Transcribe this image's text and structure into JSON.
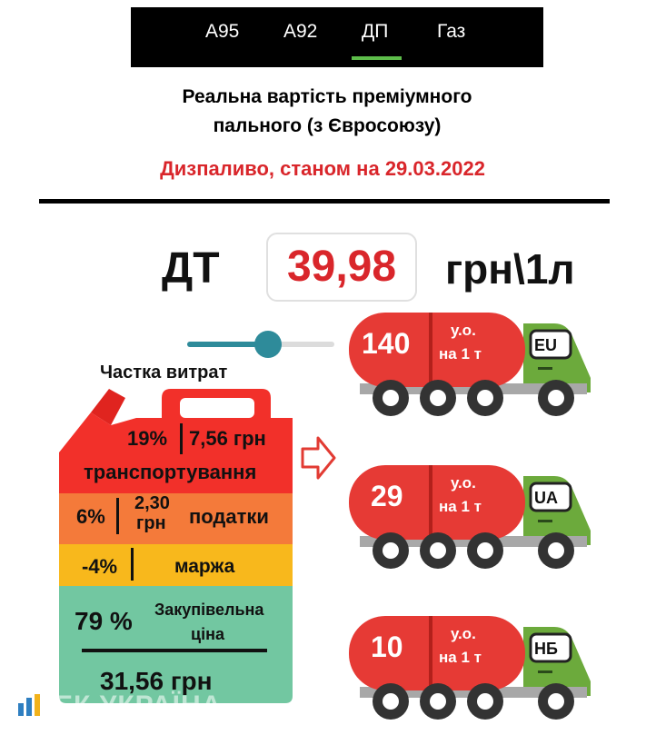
{
  "tabs": [
    {
      "label": "А95",
      "active": false
    },
    {
      "label": "А92",
      "active": false
    },
    {
      "label": "ДП",
      "active": true
    },
    {
      "label": "Газ",
      "active": false
    }
  ],
  "title_line1": "Реальна вартість преміумного",
  "title_line2": "пального (з Євросоюзу)",
  "subtitle": "Дизпаливо, станом на 29.03.2022",
  "price": {
    "fuel": "ДТ",
    "value": "39,98",
    "unit": "грн\\1л"
  },
  "slider": {
    "level": 0.55
  },
  "cost_share": {
    "title": "Частка витрат",
    "transport": {
      "percent": "19%",
      "amount": "7,56 грн",
      "label": "транспортування"
    },
    "taxes": {
      "percent": "6%",
      "amount_line1": "2,30",
      "amount_line2": "грн",
      "label": "податки"
    },
    "margin": {
      "percent": "-4%",
      "label": "маржа"
    },
    "purchase": {
      "percent": "79 %",
      "label_line1": "Закупівельна",
      "label_line2": "ціна",
      "amount": "31,56 грн"
    }
  },
  "trucks": [
    {
      "value": "140",
      "unit_line1": "у.о.",
      "unit_line2": "на 1 т",
      "tag": "EU"
    },
    {
      "value": "29",
      "unit_line1": "у.о.",
      "unit_line2": "на 1 т",
      "tag": "UA"
    },
    {
      "value": "10",
      "unit_line1": "у.о.",
      "unit_line2": "на 1 т",
      "tag": "НБ"
    }
  ],
  "watermark": "ЕК УКРАЇНА",
  "colors": {
    "red": "#d9262b",
    "tank_red": "#e63a35",
    "orange": "#f47a3a",
    "yellow": "#f8b81c",
    "green_band": "#72c7a1",
    "cab_green": "#6caa3c",
    "slider": "#2e8b9a",
    "tab_underline": "#5dbd4a"
  }
}
